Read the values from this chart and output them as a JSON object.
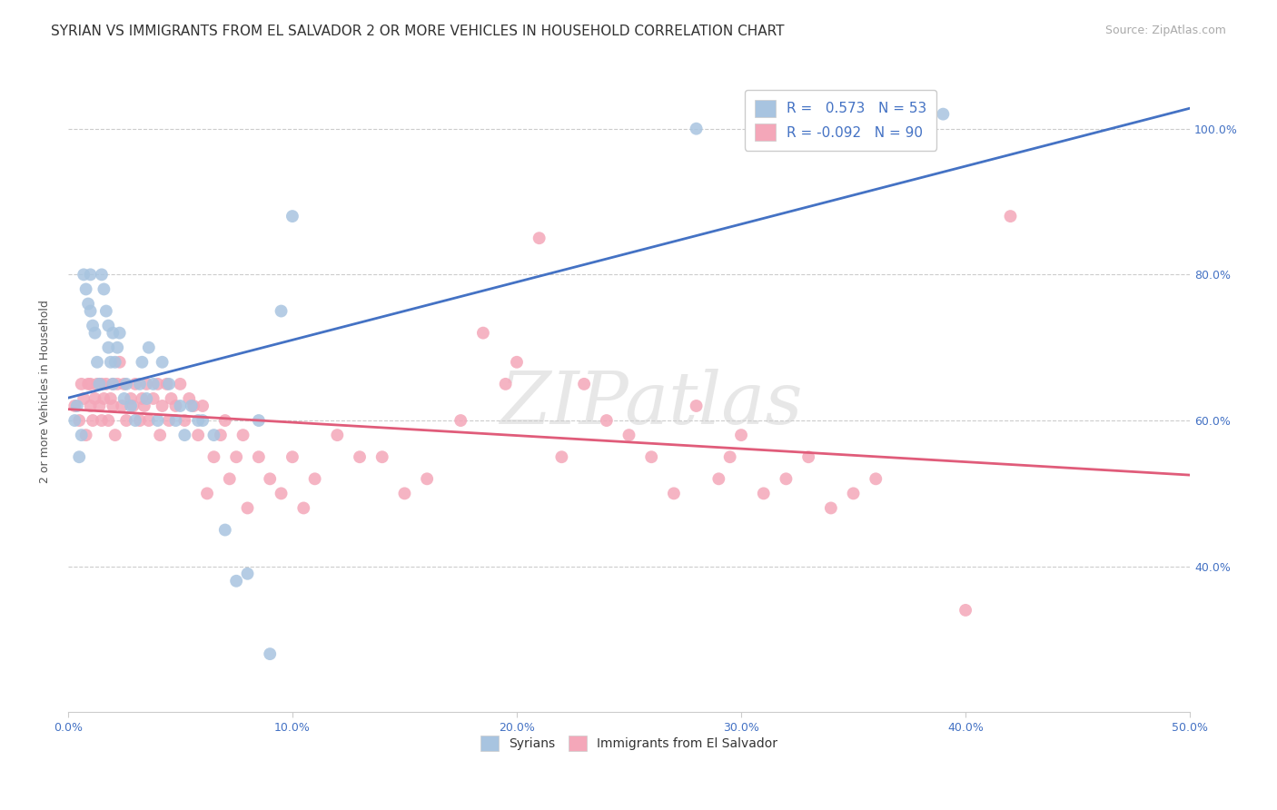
{
  "title": "SYRIAN VS IMMIGRANTS FROM EL SALVADOR 2 OR MORE VEHICLES IN HOUSEHOLD CORRELATION CHART",
  "source": "Source: ZipAtlas.com",
  "ylabel": "2 or more Vehicles in Household",
  "xlim": [
    0.0,
    0.5
  ],
  "ylim": [
    0.2,
    1.08
  ],
  "xtick_labels": [
    "0.0%",
    "10.0%",
    "20.0%",
    "30.0%",
    "40.0%",
    "50.0%"
  ],
  "xtick_vals": [
    0.0,
    0.1,
    0.2,
    0.3,
    0.4,
    0.5
  ],
  "ytick_labels": [
    "40.0%",
    "60.0%",
    "80.0%",
    "100.0%"
  ],
  "ytick_vals": [
    0.4,
    0.6,
    0.8,
    1.0
  ],
  "legend_label1": "Syrians",
  "legend_label2": "Immigrants from El Salvador",
  "R1": 0.573,
  "N1": 53,
  "R2": -0.092,
  "N2": 90,
  "color_syrian": "#a8c4e0",
  "color_elsalvador": "#f4a7b9",
  "line_color_syrian": "#4472c4",
  "line_color_elsalvador": "#e05c7a",
  "watermark": "ZIPatlas",
  "title_fontsize": 11,
  "source_fontsize": 9,
  "axis_label_fontsize": 9,
  "tick_fontsize": 9,
  "legend_fontsize": 11,
  "syrians_x": [
    0.003,
    0.004,
    0.005,
    0.006,
    0.007,
    0.008,
    0.009,
    0.01,
    0.01,
    0.011,
    0.012,
    0.013,
    0.014,
    0.015,
    0.016,
    0.017,
    0.018,
    0.018,
    0.019,
    0.02,
    0.02,
    0.021,
    0.022,
    0.023,
    0.025,
    0.026,
    0.028,
    0.03,
    0.032,
    0.033,
    0.035,
    0.036,
    0.038,
    0.04,
    0.042,
    0.045,
    0.048,
    0.05,
    0.052,
    0.055,
    0.058,
    0.06,
    0.065,
    0.07,
    0.075,
    0.08,
    0.085,
    0.09,
    0.095,
    0.1,
    0.28,
    0.36,
    0.39
  ],
  "syrians_y": [
    0.6,
    0.62,
    0.55,
    0.58,
    0.8,
    0.78,
    0.76,
    0.75,
    0.8,
    0.73,
    0.72,
    0.68,
    0.65,
    0.8,
    0.78,
    0.75,
    0.73,
    0.7,
    0.68,
    0.72,
    0.65,
    0.68,
    0.7,
    0.72,
    0.63,
    0.65,
    0.62,
    0.6,
    0.65,
    0.68,
    0.63,
    0.7,
    0.65,
    0.6,
    0.68,
    0.65,
    0.6,
    0.62,
    0.58,
    0.62,
    0.6,
    0.6,
    0.58,
    0.45,
    0.38,
    0.39,
    0.6,
    0.28,
    0.75,
    0.88,
    1.0,
    1.0,
    1.02
  ],
  "elsalvador_x": [
    0.003,
    0.005,
    0.006,
    0.007,
    0.008,
    0.009,
    0.01,
    0.01,
    0.011,
    0.012,
    0.013,
    0.014,
    0.015,
    0.015,
    0.016,
    0.017,
    0.018,
    0.019,
    0.02,
    0.02,
    0.021,
    0.022,
    0.023,
    0.024,
    0.025,
    0.026,
    0.028,
    0.029,
    0.03,
    0.032,
    0.033,
    0.034,
    0.035,
    0.036,
    0.038,
    0.04,
    0.041,
    0.042,
    0.044,
    0.045,
    0.046,
    0.048,
    0.05,
    0.052,
    0.054,
    0.056,
    0.058,
    0.06,
    0.062,
    0.065,
    0.068,
    0.07,
    0.072,
    0.075,
    0.078,
    0.08,
    0.085,
    0.09,
    0.095,
    0.1,
    0.105,
    0.11,
    0.12,
    0.13,
    0.14,
    0.15,
    0.16,
    0.175,
    0.185,
    0.195,
    0.2,
    0.21,
    0.22,
    0.23,
    0.24,
    0.25,
    0.26,
    0.27,
    0.28,
    0.29,
    0.295,
    0.3,
    0.31,
    0.32,
    0.33,
    0.34,
    0.35,
    0.36,
    0.4,
    0.42
  ],
  "elsalvador_y": [
    0.62,
    0.6,
    0.65,
    0.63,
    0.58,
    0.65,
    0.62,
    0.65,
    0.6,
    0.63,
    0.65,
    0.62,
    0.6,
    0.65,
    0.63,
    0.65,
    0.6,
    0.63,
    0.62,
    0.65,
    0.58,
    0.65,
    0.68,
    0.62,
    0.65,
    0.6,
    0.63,
    0.62,
    0.65,
    0.6,
    0.63,
    0.62,
    0.65,
    0.6,
    0.63,
    0.65,
    0.58,
    0.62,
    0.65,
    0.6,
    0.63,
    0.62,
    0.65,
    0.6,
    0.63,
    0.62,
    0.58,
    0.62,
    0.5,
    0.55,
    0.58,
    0.6,
    0.52,
    0.55,
    0.58,
    0.48,
    0.55,
    0.52,
    0.5,
    0.55,
    0.48,
    0.52,
    0.58,
    0.55,
    0.55,
    0.5,
    0.52,
    0.6,
    0.72,
    0.65,
    0.68,
    0.85,
    0.55,
    0.65,
    0.6,
    0.58,
    0.55,
    0.5,
    0.62,
    0.52,
    0.55,
    0.58,
    0.5,
    0.52,
    0.55,
    0.48,
    0.5,
    0.52,
    0.34,
    0.88
  ],
  "background_color": "#ffffff",
  "grid_color": "#cccccc",
  "right_tick_color": "#4472c4"
}
